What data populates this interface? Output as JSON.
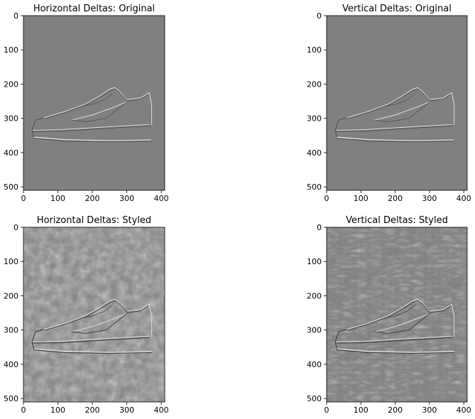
{
  "figure": {
    "background": "#ffffff",
    "panel_gray": "#808080"
  },
  "chart_data": [
    {
      "type": "image",
      "title": "Horizontal Deltas: Original",
      "content": "shoe edge map (horizontal gradient), mostly flat gray",
      "xlim": [
        0,
        410
      ],
      "ylim": [
        510,
        0
      ],
      "xticks": [
        0,
        100,
        200,
        300,
        400
      ],
      "yticks": [
        0,
        100,
        200,
        300,
        400,
        500
      ]
    },
    {
      "type": "image",
      "title": "Vertical Deltas: Original",
      "content": "shoe edge map (vertical gradient), mostly flat gray",
      "xlim": [
        0,
        410
      ],
      "ylim": [
        510,
        0
      ],
      "xticks": [
        0,
        100,
        200,
        300,
        400
      ],
      "yticks": [
        0,
        100,
        200,
        300,
        400,
        500
      ]
    },
    {
      "type": "image",
      "title": "Horizontal Deltas: Styled",
      "content": "stylized shoe texture (horizontal gradient), noisy colored edges",
      "xlim": [
        0,
        410
      ],
      "ylim": [
        510,
        0
      ],
      "xticks": [
        0,
        100,
        200,
        300,
        400
      ],
      "yticks": [
        0,
        100,
        200,
        300,
        400,
        500
      ]
    },
    {
      "type": "image",
      "title": "Vertical Deltas: Styled",
      "content": "stylized shoe texture (vertical gradient), noisy colored edges",
      "xlim": [
        0,
        410
      ],
      "ylim": [
        510,
        0
      ],
      "xticks": [
        0,
        100,
        200,
        300,
        400
      ],
      "yticks": [
        0,
        100,
        200,
        300,
        400,
        500
      ]
    }
  ]
}
